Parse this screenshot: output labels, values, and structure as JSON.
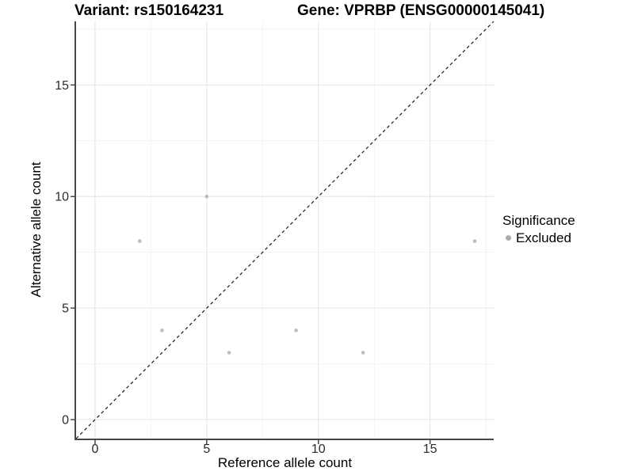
{
  "header": {
    "variant_title": "Variant: rs150164231",
    "gene_title": "Gene: VPRBP (ENSG00000145041)"
  },
  "chart_data": {
    "type": "scatter",
    "xlabel": "Reference allele count",
    "ylabel": "Alternative allele count",
    "xlim": [
      -0.85,
      17.85
    ],
    "ylim": [
      -0.85,
      17.85
    ],
    "xticks": [
      0,
      5,
      10,
      15
    ],
    "yticks": [
      0,
      5,
      10,
      15
    ],
    "minor_xticks": [
      2.5,
      7.5,
      12.5,
      17.5
    ],
    "minor_yticks": [
      2.5,
      7.5,
      12.5,
      17.5
    ],
    "grid": true,
    "legend_position": "right",
    "identity_line": {
      "style": "dashed",
      "slope": 1,
      "intercept": 0,
      "color": "#1a1a1a"
    },
    "series": [
      {
        "name": "Excluded",
        "color": "#bcbcbc",
        "points": [
          {
            "x": 2,
            "y": 8
          },
          {
            "x": 3,
            "y": 4
          },
          {
            "x": 5,
            "y": 10
          },
          {
            "x": 6,
            "y": 3
          },
          {
            "x": 9,
            "y": 4
          },
          {
            "x": 12,
            "y": 3
          },
          {
            "x": 17,
            "y": 8
          }
        ]
      }
    ],
    "colors": {
      "grid_major": "#e4e4e4",
      "grid_minor": "#f2f2f2",
      "axis_line": "#474747",
      "tick_label": "#2b2b2b"
    }
  },
  "legend": {
    "title": "Significance",
    "items": [
      {
        "label": "Excluded",
        "color": "#adadad"
      }
    ]
  }
}
